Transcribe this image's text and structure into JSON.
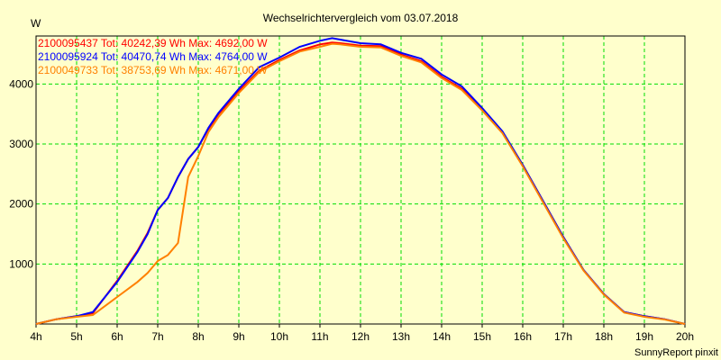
{
  "chart_data": {
    "type": "line",
    "title": "Wechselrichtervergleich vom 03.07.2018",
    "ylabel": "W",
    "xlabel": "",
    "footer": "SunnyReport pinxit",
    "xlim": [
      4,
      20
    ],
    "ylim": [
      0,
      4800
    ],
    "x_ticks": [
      4,
      5,
      6,
      7,
      8,
      9,
      10,
      11,
      12,
      13,
      14,
      15,
      16,
      17,
      18,
      19,
      20
    ],
    "x_tick_labels": [
      "4h",
      "5h",
      "6h",
      "7h",
      "8h",
      "9h",
      "10h",
      "11h",
      "12h",
      "13h",
      "14h",
      "15h",
      "16h",
      "17h",
      "18h",
      "19h",
      "20h"
    ],
    "y_ticks": [
      1000,
      2000,
      3000,
      4000
    ],
    "y_tick_labels": [
      "1000",
      "2000",
      "3000",
      "4000"
    ],
    "grid": true,
    "legend_position": "top-left",
    "series": [
      {
        "name": "2100095437 Tot: 40242,39 Wh Max: 4692,00 W",
        "color": "#ff0000",
        "x": [
          4,
          4.5,
          5,
          5.4,
          6,
          6.5,
          6.75,
          7,
          7.25,
          7.5,
          7.75,
          8,
          8.25,
          8.5,
          9,
          9.5,
          10,
          10.5,
          11,
          11.3,
          11.5,
          12,
          12.5,
          13,
          13.5,
          14,
          14.5,
          15,
          15.5,
          16,
          16.5,
          17,
          17.5,
          18,
          18.5,
          19,
          19.5,
          20
        ],
        "y": [
          0,
          80,
          130,
          180,
          720,
          1220,
          1520,
          1900,
          2100,
          2450,
          2750,
          2950,
          3250,
          3500,
          3880,
          4220,
          4400,
          4560,
          4660,
          4692,
          4680,
          4640,
          4630,
          4490,
          4380,
          4120,
          3920,
          3580,
          3200,
          2650,
          2050,
          1450,
          900,
          500,
          200,
          130,
          80,
          0
        ]
      },
      {
        "name": "2100095924 Tot: 40470,74 Wh Max: 4764,00 W",
        "color": "#0000ff",
        "x": [
          4,
          4.5,
          5,
          5.4,
          6,
          6.5,
          6.75,
          7,
          7.25,
          7.5,
          7.75,
          8,
          8.25,
          8.5,
          9,
          9.5,
          10,
          10.5,
          11,
          11.3,
          11.5,
          12,
          12.5,
          13,
          13.5,
          14,
          14.5,
          15,
          15.5,
          16,
          16.5,
          17,
          17.5,
          18,
          18.5,
          19,
          19.5,
          20
        ],
        "y": [
          0,
          80,
          130,
          200,
          700,
          1200,
          1500,
          1900,
          2100,
          2450,
          2750,
          2950,
          3270,
          3520,
          3920,
          4280,
          4440,
          4620,
          4720,
          4764,
          4740,
          4680,
          4660,
          4520,
          4420,
          4160,
          3960,
          3600,
          3210,
          2650,
          2050,
          1450,
          900,
          500,
          200,
          130,
          80,
          0
        ]
      },
      {
        "name": "2100049733 Tot: 38753,69 Wh Max: 4671,00 W",
        "color": "#ff8000",
        "x": [
          4,
          4.5,
          5,
          5.4,
          6,
          6.5,
          6.75,
          7,
          7.25,
          7.5,
          7.75,
          8,
          8.25,
          8.5,
          9,
          9.5,
          10,
          10.5,
          11,
          11.3,
          11.5,
          12,
          12.5,
          13,
          13.5,
          14,
          14.5,
          15,
          15.5,
          16,
          16.5,
          17,
          17.5,
          18,
          18.5,
          19,
          19.5,
          20
        ],
        "y": [
          0,
          80,
          120,
          150,
          450,
          700,
          850,
          1050,
          1150,
          1350,
          2450,
          2800,
          3200,
          3450,
          3850,
          4200,
          4380,
          4540,
          4620,
          4671,
          4660,
          4620,
          4610,
          4470,
          4360,
          4100,
          3900,
          3560,
          3180,
          2630,
          2030,
          1430,
          890,
          490,
          190,
          120,
          75,
          0
        ]
      }
    ]
  }
}
